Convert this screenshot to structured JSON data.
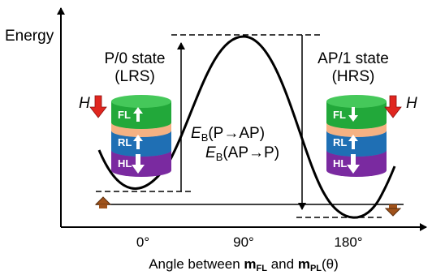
{
  "axes": {
    "y_label": "Energy",
    "x_ticks": [
      "0°",
      "90°",
      "180°"
    ],
    "x_label": {
      "prefix": "Angle between ",
      "m1_main": "m",
      "m1_sub": "FL",
      "joiner": " and ",
      "m2_main": "m",
      "m2_sub": "PL",
      "suffix": "(θ)"
    }
  },
  "left_state": {
    "line1": "P/0 state",
    "line2": "(LRS)"
  },
  "right_state": {
    "line1": "AP/1 state",
    "line2": "(HRS)"
  },
  "barriers": {
    "p_to_ap": {
      "symbol": "E",
      "sub": "B",
      "arg": "(P→AP)"
    },
    "ap_to_p": {
      "symbol": "E",
      "sub": "B",
      "arg": "(AP→P)"
    }
  },
  "field_label": "H",
  "stack_labels": {
    "free_layer": "FL",
    "reference_layer": "RL",
    "hard_layer": "HL"
  },
  "colors": {
    "free_layer": "#22a83a",
    "spacer": "#f4b183",
    "reference_layer": "#1f6fb4",
    "hard_layer": "#7a2aa0",
    "field_arrow": "#e0261f",
    "bias_arrow": "#a0521b"
  }
}
